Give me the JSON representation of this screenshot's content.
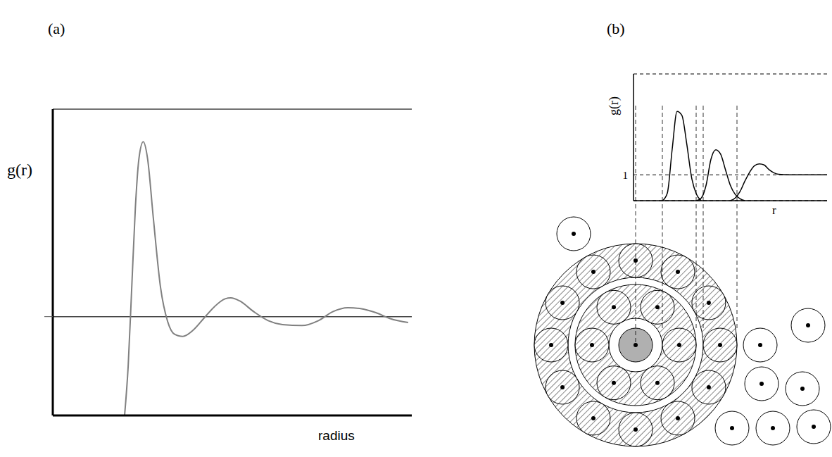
{
  "chart_data": [
    {
      "type": "line",
      "title": "(a)",
      "x_label": "radius",
      "y_label": "g(r)",
      "x": [
        1.0,
        1.05,
        1.1,
        1.15,
        1.2,
        1.26,
        1.32,
        1.4,
        1.5,
        1.6,
        1.7,
        1.81,
        1.95,
        2.1,
        2.25,
        2.4,
        2.48,
        2.6,
        2.8,
        3.0,
        3.2,
        3.47,
        3.7,
        3.9,
        4.11,
        4.3,
        4.5,
        4.7,
        4.95
      ],
      "values": [
        0,
        0.5,
        1.3,
        2.1,
        2.6,
        2.77,
        2.6,
        2.0,
        1.3,
        0.95,
        0.82,
        0.8,
        0.86,
        0.98,
        1.1,
        1.18,
        1.19,
        1.16,
        1.05,
        0.96,
        0.92,
        0.91,
        0.96,
        1.05,
        1.09,
        1.08,
        1.04,
        0.98,
        0.94
      ],
      "color": "#808080",
      "xlim": [
        0,
        5
      ],
      "ylim": [
        0,
        3.1
      ],
      "yticks": [
        1
      ],
      "grid": true,
      "tick_labels": false
    },
    {
      "type": "line",
      "title": "(b)",
      "x_label": "r",
      "y_label": "g(r)",
      "x": [
        1.2,
        1.4,
        1.6,
        1.8,
        2.0,
        2.2,
        2.4,
        2.6,
        2.8,
        3.0,
        3.2,
        3.4,
        3.6,
        3.8,
        4.0,
        4.2,
        4.4,
        4.6,
        4.8,
        5.0,
        5.2,
        5.4,
        5.6,
        5.8,
        6.0,
        6.4,
        7.0,
        8.0
      ],
      "series": [
        {
          "color": "#000000",
          "values": [
            0,
            0.3,
            2.0,
            3.45,
            3.3,
            2.2,
            0.9,
            0.25,
            0,
            null,
            null,
            null,
            null,
            null,
            null,
            null,
            null,
            null,
            null,
            null,
            null,
            null,
            null,
            null,
            null,
            null,
            null,
            null
          ]
        },
        {
          "color": "#000000",
          "values": [
            null,
            null,
            null,
            null,
            null,
            null,
            null,
            0,
            0.1,
            0.6,
            1.6,
            1.97,
            1.8,
            1.2,
            0.6,
            0.25,
            0.08,
            0,
            null,
            null,
            null,
            null,
            null,
            null,
            null,
            null,
            null,
            null
          ]
        },
        {
          "color": "#000000",
          "values": [
            null,
            null,
            null,
            null,
            null,
            null,
            null,
            null,
            null,
            null,
            null,
            null,
            null,
            null,
            0,
            0.1,
            0.35,
            0.75,
            1.1,
            1.35,
            1.42,
            1.38,
            1.2,
            1.08,
            1.02,
            1.0,
            1.0,
            1.0
          ]
        }
      ],
      "xlim": [
        0,
        8
      ],
      "ylim": [
        0,
        4.9
      ],
      "yticks": [
        1
      ],
      "grid": true,
      "tick_labels": "y"
    }
  ]
}
